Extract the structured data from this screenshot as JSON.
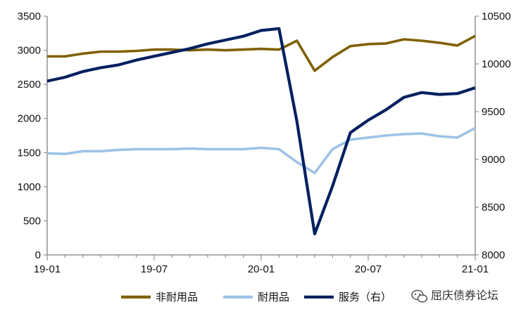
{
  "chart_data": {
    "type": "line",
    "x": [
      "19-01",
      "19-02",
      "19-03",
      "19-04",
      "19-05",
      "19-06",
      "19-07",
      "19-08",
      "19-09",
      "19-10",
      "19-11",
      "19-12",
      "20-01",
      "20-02",
      "20-03",
      "20-04",
      "20-05",
      "20-06",
      "20-07",
      "20-08",
      "20-09",
      "20-10",
      "20-11",
      "20-12",
      "21-01"
    ],
    "xtick_labels": [
      "19-01",
      "19-07",
      "20-01",
      "20-07",
      "21-01"
    ],
    "yleft_ticks": [
      "0",
      "500",
      "1000",
      "1500",
      "2000",
      "2500",
      "3000",
      "3500"
    ],
    "yright_ticks": [
      "8000",
      "8500",
      "9000",
      "9500",
      "10000",
      "10500"
    ],
    "ylim_left": [
      0,
      3500
    ],
    "ylim_right": [
      8000,
      10500
    ],
    "series": [
      {
        "name": "非耐用品",
        "axis": "left",
        "color": "#7f6000",
        "values": [
          2910,
          2910,
          2950,
          2980,
          2980,
          2990,
          3010,
          3010,
          3000,
          3010,
          3000,
          3010,
          3020,
          3010,
          3140,
          2700,
          2900,
          3060,
          3090,
          3100,
          3160,
          3140,
          3110,
          3070,
          3210
        ]
      },
      {
        "name": "耐用品",
        "axis": "left",
        "color": "#9dc3e6",
        "values": [
          1490,
          1480,
          1520,
          1520,
          1540,
          1550,
          1550,
          1550,
          1560,
          1550,
          1550,
          1550,
          1570,
          1550,
          1360,
          1200,
          1550,
          1690,
          1720,
          1750,
          1770,
          1780,
          1740,
          1720,
          1860
        ]
      },
      {
        "name": "服务（右）",
        "axis": "right",
        "color": "#002060",
        "values": [
          9820,
          9860,
          9920,
          9960,
          9990,
          10040,
          10080,
          10120,
          10160,
          10210,
          10250,
          10290,
          10350,
          10370,
          9400,
          8220,
          8720,
          9280,
          9410,
          9520,
          9650,
          9700,
          9680,
          9690,
          9750
        ]
      }
    ],
    "legend_position": "bottom",
    "grid": false
  },
  "watermark": {
    "text": "屈庆债券论坛",
    "icon": "wechat-icon"
  }
}
